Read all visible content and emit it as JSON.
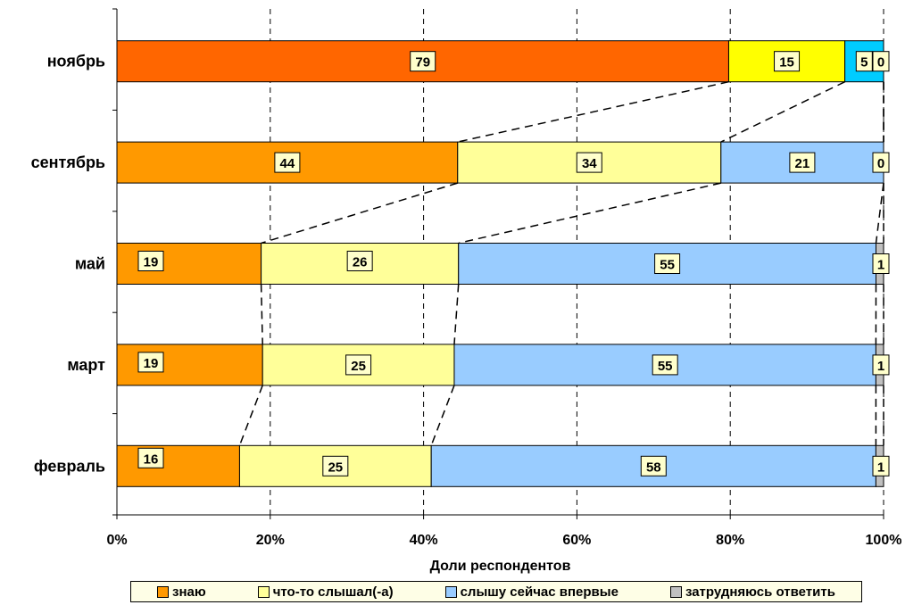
{
  "chart_data": {
    "type": "bar",
    "orientation": "horizontal",
    "stacked": "percent",
    "title": "",
    "xlabel": "Доли респондентов",
    "ylabel": "",
    "xlim": [
      0,
      100
    ],
    "x_ticks": [
      "0%",
      "20%",
      "40%",
      "60%",
      "80%",
      "100%"
    ],
    "grid": "vertical dashed",
    "legend_position": "bottom",
    "categories": [
      "ноябрь",
      "сентябрь",
      "май",
      "март",
      "февраль"
    ],
    "series": [
      {
        "name": "знаю",
        "values": [
          79,
          44,
          19,
          19,
          16
        ],
        "colors": [
          "#ff6600",
          "#ff9900",
          "#ff9900",
          "#ff9900",
          "#ff9900"
        ]
      },
      {
        "name": "что-то слышал(-а)",
        "values": [
          15,
          34,
          26,
          25,
          25
        ],
        "colors": [
          "#ffff00",
          "#ffff99",
          "#ffff99",
          "#ffff99",
          "#ffff99"
        ]
      },
      {
        "name": "слышу сейчас впервые",
        "values": [
          5,
          21,
          55,
          55,
          58
        ],
        "colors": [
          "#00ccff",
          "#99ccff",
          "#99ccff",
          "#99ccff",
          "#99ccff"
        ]
      },
      {
        "name": "затрудняюсь ответить",
        "values": [
          0,
          0,
          1,
          1,
          1
        ],
        "colors": [
          "#c0c0c0",
          "#c0c0c0",
          "#c0c0c0",
          "#c0c0c0",
          "#c0c0c0"
        ]
      }
    ],
    "legend_colors": [
      "#ff9900",
      "#ffff99",
      "#99ccff",
      "#c0c0c0"
    ]
  }
}
